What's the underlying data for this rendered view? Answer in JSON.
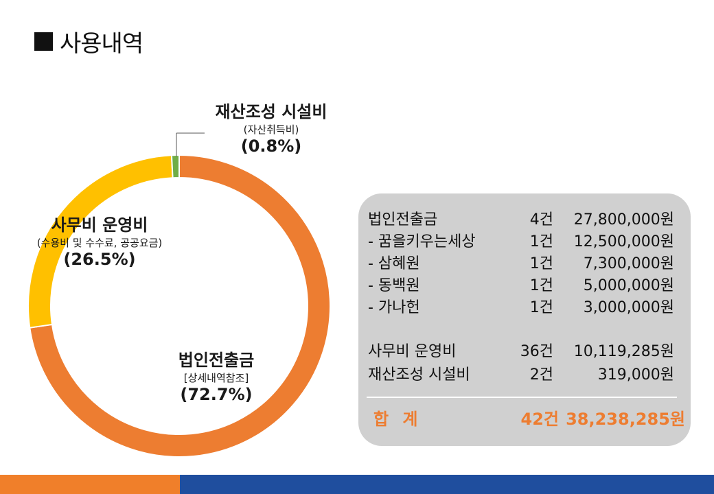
{
  "title": "사용내역",
  "chart_data": {
    "type": "pie",
    "series": [
      {
        "name": "법인전출금",
        "sub": "[상세내역참조]",
        "pct_label": "(72.7%)",
        "value": 72.7,
        "color": "#ED7D31"
      },
      {
        "name": "사무비 운영비",
        "sub": "(수용비 및 수수료, 공공요금)",
        "pct_label": "(26.5%)",
        "value": 26.5,
        "color": "#FFC000"
      },
      {
        "name": "재산조성 시설비",
        "sub": "(자산취득비)",
        "pct_label": "(0.8%)",
        "value": 0.8,
        "color": "#70AD47"
      }
    ]
  },
  "table": {
    "rows": [
      {
        "name": "법인전출금",
        "count": "4건",
        "amount": "27,800,000원"
      },
      {
        "name": "- 꿈을키우는세상",
        "count": "1건",
        "amount": "12,500,000원"
      },
      {
        "name": "- 삼혜원",
        "count": "1건",
        "amount": "7,300,000원"
      },
      {
        "name": "- 동백원",
        "count": "1건",
        "amount": "5,000,000원"
      },
      {
        "name": "- 가나헌",
        "count": "1건",
        "amount": "3,000,000원"
      },
      {
        "name": "사무비 운영비",
        "count": "36건",
        "amount": "10,119,285원"
      },
      {
        "name": "재산조성 시설비",
        "count": "2건",
        "amount": "319,000원"
      }
    ],
    "total": {
      "name": "합 계",
      "count": "42건",
      "amount": "38,238,285원"
    }
  }
}
